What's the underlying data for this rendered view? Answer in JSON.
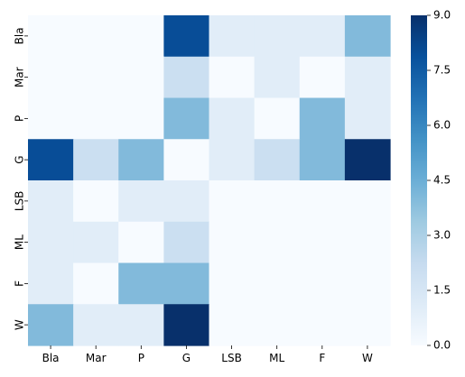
{
  "chart_data": {
    "type": "heatmap",
    "title": "",
    "xlabel": "",
    "ylabel": "",
    "x_categories": [
      "Bla",
      "Mar",
      "P",
      "G",
      "LSB",
      "ML",
      "F",
      "W"
    ],
    "y_categories": [
      "Bla",
      "Mar",
      "P",
      "G",
      "LSB",
      "ML",
      "F",
      "W"
    ],
    "values": [
      [
        0,
        0,
        0,
        8,
        1,
        1,
        1,
        4
      ],
      [
        0,
        0,
        0,
        2,
        0,
        1,
        0,
        1
      ],
      [
        0,
        0,
        0,
        4,
        1,
        0,
        4,
        1
      ],
      [
        8,
        2,
        4,
        0,
        1,
        2,
        4,
        9
      ],
      [
        1,
        0,
        1,
        1,
        0,
        0,
        0,
        0
      ],
      [
        1,
        1,
        0,
        2,
        0,
        0,
        0,
        0
      ],
      [
        1,
        0,
        4,
        4,
        0,
        0,
        0,
        0
      ],
      [
        4,
        1,
        1,
        9,
        0,
        0,
        0,
        0
      ]
    ],
    "vmin": 0,
    "vmax": 9,
    "colormap": "Blues",
    "colorbar": {
      "ticks": [
        0.0,
        1.5,
        3.0,
        4.5,
        6.0,
        7.5,
        9.0
      ],
      "tick_labels": [
        "0.0",
        "1.5",
        "3.0",
        "4.5",
        "6.0",
        "7.5",
        "9.0"
      ]
    },
    "grid": false,
    "legend": "none"
  }
}
